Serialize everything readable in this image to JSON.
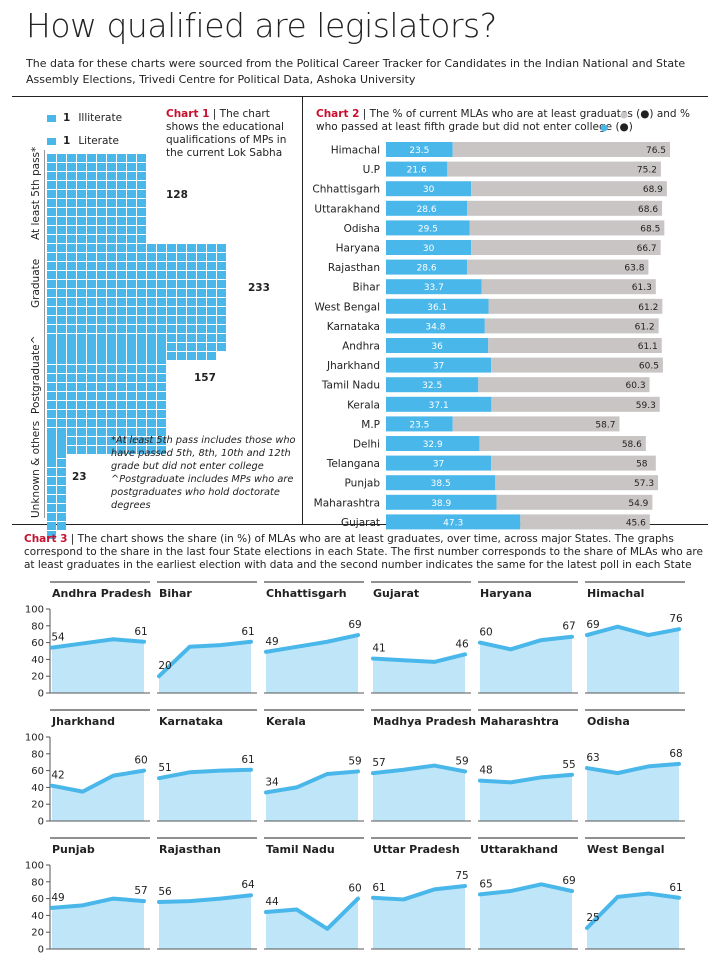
{
  "header": {
    "title": "How qualified are legislators?",
    "subtitle": "The data for these charts were sourced from the Political Career Tracker for Candidates in the Indian National and State Assembly Elections, Trivedi Centre for Political Data, Ashoka University"
  },
  "chart1": {
    "tag": "Chart 1",
    "caption": "The chart shows the educational qualifications of MPs in the current Lok Sabha",
    "legend": [
      {
        "count": "1",
        "label": "Illiterate"
      },
      {
        "count": "1",
        "label": "Literate"
      }
    ],
    "note": "*At least 5th pass includes those who have passed 5th, 8th, 10th and 12th grade but did not enter college ^Postgraduate includes MPs who are postgraduates who hold doctorate degrees"
  },
  "chart2": {
    "tag": "Chart 2",
    "caption": "The % of current MLAs who are at least graduates (●) and % who passed at least fifth grade but did not enter college (●)"
  },
  "chart3": {
    "tag": "Chart 3",
    "caption": "The chart shows the share  (in %) of MLAs who are at least graduates, over time, across major States. The graphs correspond to the share in the last four State elections in each State. The first number corresponds to the share of MLAs who are at least graduates in the earliest election with data and the second number indicates the same for the latest poll in each State"
  },
  "colors": {
    "accent": "#4ab7ea",
    "grey": "#c9c5c5",
    "red": "#c8102e"
  },
  "chart_data": [
    {
      "type": "waffle",
      "title": "",
      "categories": [
        "At least 5th pass*",
        "Graduate",
        "Postgraduate^",
        "Unknown & others"
      ],
      "values": [
        128,
        233,
        157,
        23
      ],
      "unit_per_square": 1
    },
    {
      "type": "bar",
      "orientation": "horizontal",
      "stacked": true,
      "categories": [
        "Himachal",
        "U.P",
        "Chhattisgarh",
        "Uttarakhand",
        "Odisha",
        "Haryana",
        "Rajasthan",
        "Bihar",
        "West Bengal",
        "Karnataka",
        "Andhra",
        "Jharkhand",
        "Tamil Nadu",
        "Kerala",
        "M.P",
        "Delhi",
        "Telangana",
        "Punjab",
        "Maharashtra",
        "Gujarat"
      ],
      "series": [
        {
          "values": [
            23.5,
            21.6,
            30,
            28.6,
            29.5,
            30,
            28.6,
            33.7,
            36.1,
            34.8,
            36,
            37,
            32.5,
            37.1,
            23.5,
            32.9,
            37,
            38.5,
            38.9,
            47.3
          ],
          "color": "#4ab7ea"
        },
        {
          "values": [
            76.5,
            75.2,
            68.9,
            68.6,
            68.5,
            66.7,
            63.8,
            61.3,
            61.2,
            61.2,
            61.1,
            60.5,
            60.3,
            59.3,
            58.7,
            58.6,
            58,
            57.3,
            54.9,
            45.6
          ],
          "color": "#c9c5c5"
        }
      ],
      "xlim": [
        0,
        100
      ],
      "xticks": [
        "0",
        "20",
        "40",
        "60",
        "80",
        "100"
      ]
    },
    {
      "type": "line",
      "ylim": [
        0,
        100
      ],
      "yticks": [
        "0",
        "20",
        "40",
        "60",
        "80",
        "100"
      ],
      "panels": [
        {
          "name": "Andhra Pradesh",
          "values": [
            54,
            59,
            64,
            61
          ],
          "first_label": "54",
          "last_label": "61"
        },
        {
          "name": "Bihar",
          "values": [
            20,
            55,
            57,
            61
          ],
          "first_label": "20",
          "last_label": "61"
        },
        {
          "name": "Chhattisgarh",
          "values": [
            49,
            55,
            61,
            69
          ],
          "first_label": "49",
          "last_label": "69"
        },
        {
          "name": "Gujarat",
          "values": [
            41,
            39,
            37,
            46
          ],
          "first_label": "41",
          "last_label": "46"
        },
        {
          "name": "Haryana",
          "values": [
            60,
            52,
            63,
            67
          ],
          "first_label": "60",
          "last_label": "67"
        },
        {
          "name": "Himachal",
          "values": [
            69,
            79,
            69,
            76
          ],
          "first_label": "69",
          "last_label": "76"
        },
        {
          "name": "Jharkhand",
          "values": [
            42,
            35,
            54,
            60
          ],
          "first_label": "42",
          "last_label": "60"
        },
        {
          "name": "Karnataka",
          "values": [
            51,
            58,
            60,
            61
          ],
          "first_label": "51",
          "last_label": "61"
        },
        {
          "name": "Kerala",
          "values": [
            34,
            40,
            56,
            59
          ],
          "first_label": "34",
          "last_label": "59"
        },
        {
          "name": "Madhya Pradesh",
          "values": [
            57,
            61,
            66,
            59
          ],
          "first_label": "57",
          "last_label": "59"
        },
        {
          "name": "Maharashtra",
          "values": [
            48,
            46,
            52,
            55
          ],
          "first_label": "48",
          "last_label": "55"
        },
        {
          "name": "Odisha",
          "values": [
            63,
            57,
            65,
            68
          ],
          "first_label": "63",
          "last_label": "68"
        },
        {
          "name": "Punjab",
          "values": [
            49,
            52,
            60,
            57
          ],
          "first_label": "49",
          "last_label": "57"
        },
        {
          "name": "Rajasthan",
          "values": [
            56,
            57,
            60,
            64
          ],
          "first_label": "56",
          "last_label": "64"
        },
        {
          "name": "Tamil Nadu",
          "values": [
            44,
            47,
            24,
            60
          ],
          "first_label": "44",
          "last_label": "60"
        },
        {
          "name": "Uttar Pradesh",
          "values": [
            61,
            59,
            71,
            75
          ],
          "first_label": "61",
          "last_label": "75"
        },
        {
          "name": "Uttarakhand",
          "values": [
            65,
            69,
            77,
            69
          ],
          "first_label": "65",
          "last_label": "69"
        },
        {
          "name": "West Bengal",
          "values": [
            25,
            62,
            66,
            61
          ],
          "first_label": "25",
          "last_label": "61"
        }
      ]
    }
  ]
}
